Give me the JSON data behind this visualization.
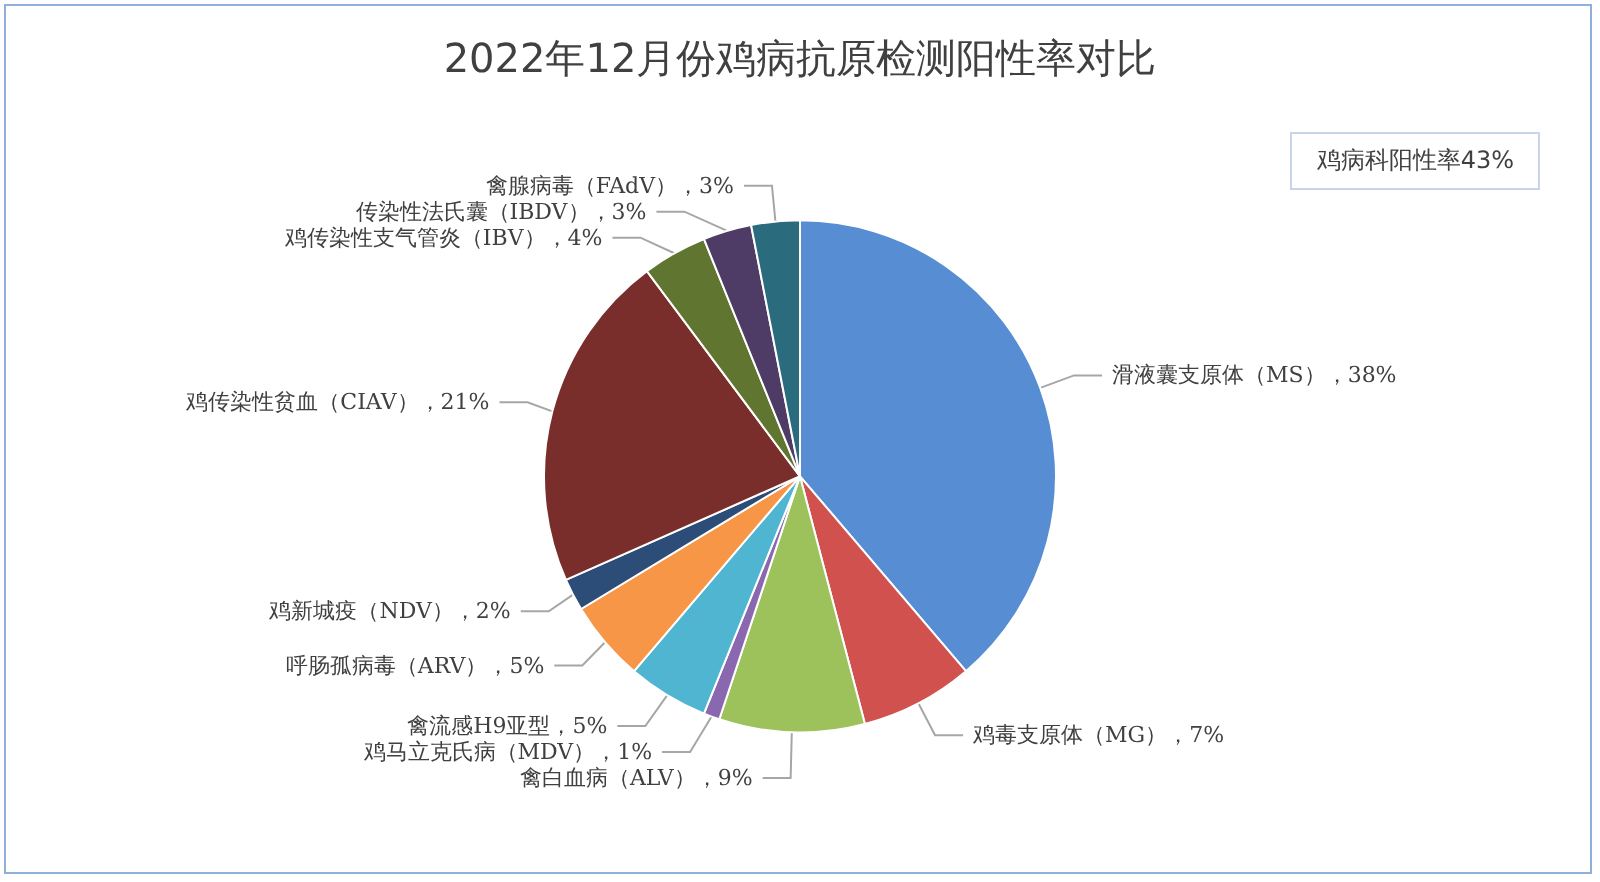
{
  "chart_data": {
    "type": "pie",
    "title": "2022年12月份鸡病抗原检测阳性率对比",
    "categories": [
      "滑液囊支原体（MS）",
      "鸡毒支原体（MG）",
      "禽白血病（ALV）",
      "鸡马立克氏病（MDV）",
      "禽流感H9亚型",
      "呼肠孤病毒（ARV）",
      "鸡新城疫（NDV）",
      "鸡传染性贫血（CIAV）",
      "鸡传染性支气管炎（IBV）",
      "传染性法氏囊（IBDV）",
      "禽腺病毒（FAdV）"
    ],
    "values": [
      38,
      7,
      9,
      1,
      5,
      5,
      2,
      21,
      4,
      3,
      3
    ],
    "colors": [
      "#568dd3",
      "#d1514f",
      "#9ec25b",
      "#8a68b0",
      "#4fb5d0",
      "#f79646",
      "#2b4d78",
      "#7a2e2c",
      "#5f7530",
      "#4f3c66",
      "#2a6b7e"
    ],
    "value_labels": [
      "38%",
      "7%",
      "9%",
      "1%",
      "5%",
      "5%",
      "2%",
      "21%",
      "4%",
      "3%",
      "3%"
    ],
    "annotations": [
      "鸡病科阳性率43%"
    ]
  }
}
